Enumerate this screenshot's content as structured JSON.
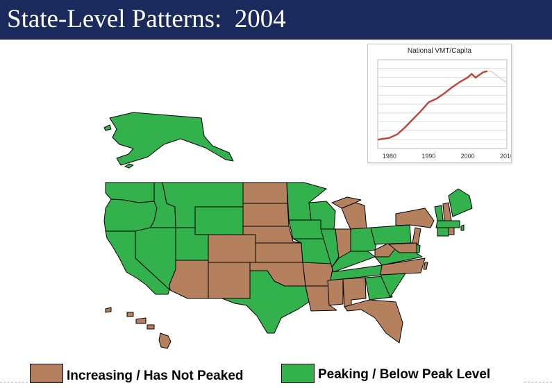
{
  "slide": {
    "title": "State-Level Patterns:  2004"
  },
  "colors": {
    "increasing": "#b5805e",
    "peaking": "#33b14d",
    "title_bar": "#1b2a5c",
    "vmt_line": "#c0453a",
    "state_border": "#000000"
  },
  "legend": [
    {
      "key": "increasing",
      "label": "Increasing / Has Not Peaked"
    },
    {
      "key": "peaking",
      "label": "Peaking / Below Peak Level"
    }
  ],
  "inset_chart": {
    "title": "National VMT/Capita",
    "chart_data": {
      "type": "line",
      "title": "National VMT/Capita",
      "xlabel": "",
      "ylabel": "",
      "xlim": [
        1977,
        2010
      ],
      "ylim": [
        0,
        100
      ],
      "x_ticks": [
        1980,
        1990,
        2000,
        2010
      ],
      "grid": true,
      "series": [
        {
          "x": [
            1977,
            1980,
            1982,
            1984,
            1986,
            1988,
            1990,
            1992,
            1994,
            1996,
            1998,
            2000,
            2001,
            2002,
            2003,
            2004,
            2005,
            2006,
            2008,
            2010
          ],
          "values": [
            10,
            12,
            16,
            24,
            33,
            42,
            52,
            56,
            62,
            69,
            75,
            80,
            84,
            80,
            83,
            86,
            87,
            87,
            80,
            74
          ],
          "solid_until": 2005
        }
      ]
    }
  },
  "map": {
    "states": [
      {
        "id": "WA",
        "status": "peaking"
      },
      {
        "id": "OR",
        "status": "peaking"
      },
      {
        "id": "CA",
        "status": "peaking"
      },
      {
        "id": "ID",
        "status": "peaking"
      },
      {
        "id": "NV",
        "status": "peaking"
      },
      {
        "id": "MT",
        "status": "peaking"
      },
      {
        "id": "WY",
        "status": "peaking"
      },
      {
        "id": "UT",
        "status": "peaking"
      },
      {
        "id": "AZ",
        "status": "increasing"
      },
      {
        "id": "CO",
        "status": "increasing"
      },
      {
        "id": "NM",
        "status": "increasing"
      },
      {
        "id": "ND",
        "status": "increasing"
      },
      {
        "id": "SD",
        "status": "increasing"
      },
      {
        "id": "NE",
        "status": "increasing"
      },
      {
        "id": "KS",
        "status": "increasing"
      },
      {
        "id": "OK",
        "status": "increasing"
      },
      {
        "id": "TX",
        "status": "peaking"
      },
      {
        "id": "MN",
        "status": "peaking"
      },
      {
        "id": "IA",
        "status": "peaking"
      },
      {
        "id": "MO",
        "status": "peaking"
      },
      {
        "id": "AR",
        "status": "increasing"
      },
      {
        "id": "LA",
        "status": "increasing"
      },
      {
        "id": "WI",
        "status": "peaking"
      },
      {
        "id": "IL",
        "status": "peaking"
      },
      {
        "id": "MI",
        "status": "increasing"
      },
      {
        "id": "IN",
        "status": "increasing"
      },
      {
        "id": "OH",
        "status": "peaking"
      },
      {
        "id": "KY",
        "status": "peaking"
      },
      {
        "id": "TN",
        "status": "peaking"
      },
      {
        "id": "MS",
        "status": "increasing"
      },
      {
        "id": "AL",
        "status": "increasing"
      },
      {
        "id": "GA",
        "status": "peaking"
      },
      {
        "id": "FL",
        "status": "increasing"
      },
      {
        "id": "SC",
        "status": "peaking"
      },
      {
        "id": "NC",
        "status": "increasing"
      },
      {
        "id": "VA",
        "status": "peaking"
      },
      {
        "id": "WV",
        "status": "increasing"
      },
      {
        "id": "PA",
        "status": "peaking"
      },
      {
        "id": "NY",
        "status": "increasing"
      },
      {
        "id": "NJ",
        "status": "increasing"
      },
      {
        "id": "DE",
        "status": "peaking"
      },
      {
        "id": "MD",
        "status": "increasing"
      },
      {
        "id": "VT",
        "status": "peaking"
      },
      {
        "id": "NH",
        "status": "increasing"
      },
      {
        "id": "ME",
        "status": "peaking"
      },
      {
        "id": "MA",
        "status": "peaking"
      },
      {
        "id": "CT",
        "status": "peaking"
      },
      {
        "id": "RI",
        "status": "increasing"
      },
      {
        "id": "AK",
        "status": "peaking"
      },
      {
        "id": "HI",
        "status": "increasing"
      }
    ]
  }
}
